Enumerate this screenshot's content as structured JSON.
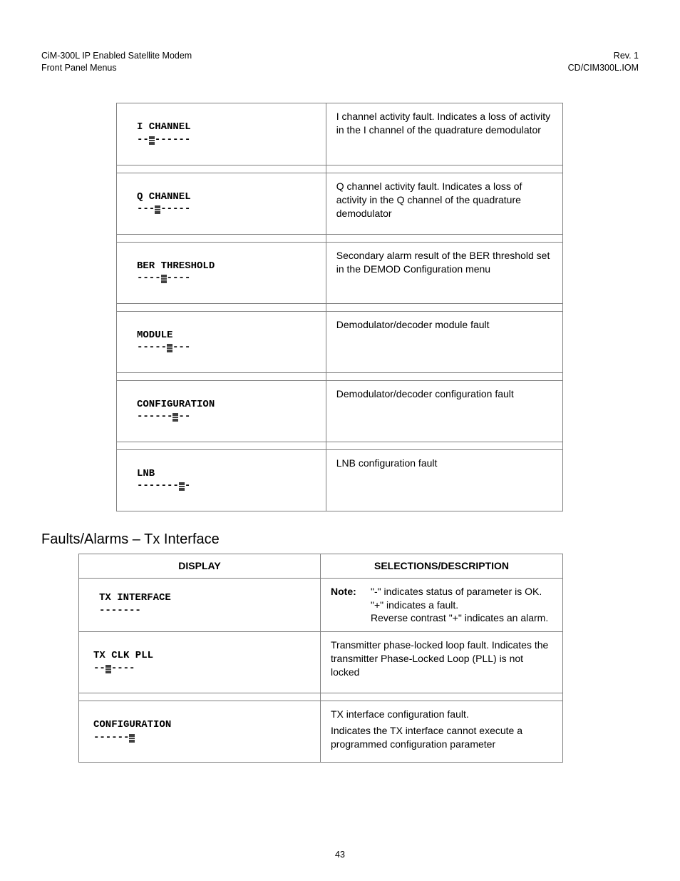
{
  "header": {
    "left1": "CiM-300L IP Enabled Satellite Modem",
    "left2": "Front Panel Menus",
    "right1": "Rev. 1",
    "right2": "CD/CIM300L.IOM"
  },
  "table1": {
    "rows": [
      {
        "label": "I CHANNEL",
        "dashes_before": 2,
        "dashes_after": 6,
        "desc": "I channel activity fault. Indicates a loss of activity in the I channel of the quadrature demodulator"
      },
      {
        "label": "Q CHANNEL",
        "dashes_before": 3,
        "dashes_after": 5,
        "desc": "Q channel activity fault. Indicates a loss of activity in the Q channel of the quadrature demodulator"
      },
      {
        "label": "BER THRESHOLD",
        "dashes_before": 4,
        "dashes_after": 4,
        "desc": "Secondary alarm result of the BER threshold set in the DEMOD Configuration menu"
      },
      {
        "label": "MODULE",
        "dashes_before": 5,
        "dashes_after": 3,
        "desc": "Demodulator/decoder module fault"
      },
      {
        "label": "CONFIGURATION",
        "dashes_before": 6,
        "dashes_after": 2,
        "desc": "Demodulator/decoder configuration fault"
      },
      {
        "label": "LNB",
        "dashes_before": 7,
        "dashes_after": 1,
        "desc": "LNB configuration fault"
      }
    ]
  },
  "section_title": "Faults/Alarms – Tx Interface",
  "table2": {
    "head_left": "DISPLAY",
    "head_right": "SELECTIONS/DESCRIPTION",
    "intro": {
      "label": "TX INTERFACE",
      "dashes": "-------",
      "note_label": "Note:",
      "note_lines": [
        "\"-\" indicates status of parameter is OK.",
        "\"+\" indicates a fault.",
        "Reverse contrast \"+\" indicates an alarm."
      ]
    },
    "rows": [
      {
        "label": "TX CLK PLL",
        "dashes_before": 2,
        "dashes_after": 4,
        "desc": "Transmitter phase-locked loop fault. Indicates the transmitter Phase-Locked Loop (PLL) is not locked"
      },
      {
        "label": "CONFIGURATION",
        "dashes_before": 6,
        "dashes_after": 0,
        "desc_lines": [
          "TX interface configuration fault.",
          "Indicates the TX interface cannot execute a programmed configuration parameter"
        ]
      }
    ]
  },
  "page_number": "43",
  "colors": {
    "border": "#808080",
    "text": "#000000",
    "bg": "#ffffff"
  }
}
